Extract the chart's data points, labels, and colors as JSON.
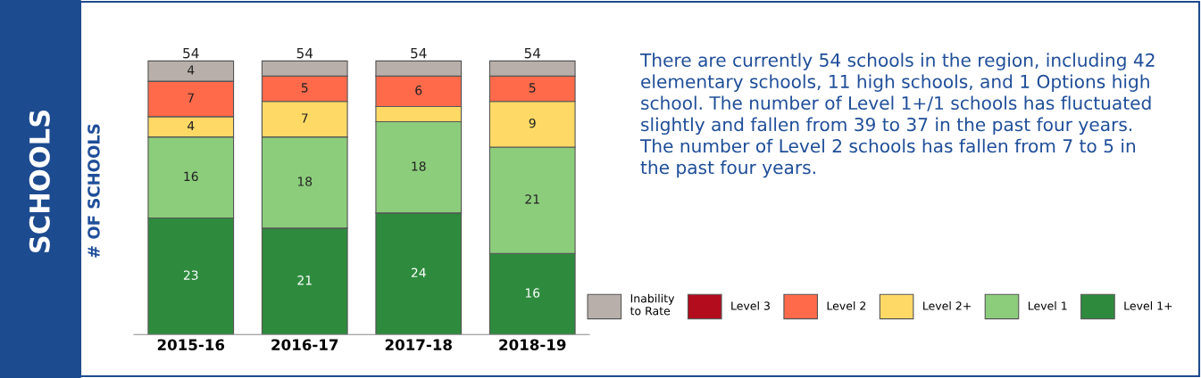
{
  "chart_data": {
    "type": "bar",
    "title": "SCHOOLS",
    "ylabel": "# OF SCHOOLS",
    "stacked": true,
    "categories": [
      "2015-16",
      "2016-17",
      "2017-18",
      "2018-19"
    ],
    "series": [
      {
        "name": "Level 1+",
        "color": "#2e8b3e",
        "values": [
          23,
          21,
          24,
          16
        ],
        "value_labels": [
          "23",
          "21",
          "24",
          "16"
        ]
      },
      {
        "name": "Level 1",
        "color": "#8ccd7c",
        "values": [
          16,
          18,
          18,
          21
        ],
        "value_labels": [
          "16",
          "18",
          "18",
          "21"
        ]
      },
      {
        "name": "Level 2+",
        "color": "#ffd966",
        "values": [
          4,
          7,
          3,
          9
        ],
        "value_labels": [
          "4",
          "7",
          null,
          "9"
        ]
      },
      {
        "name": "Level 2",
        "color": "#ff6a4b",
        "values": [
          7,
          5,
          6,
          5
        ],
        "value_labels": [
          "7",
          "5",
          "6",
          "5"
        ]
      },
      {
        "name": "Level 3",
        "color": "#b30c1c",
        "values": [
          0,
          0,
          0,
          0
        ],
        "value_labels": [
          null,
          null,
          null,
          null
        ]
      },
      {
        "name": "Inability\nto Rate",
        "color": "#b8afaa",
        "values": [
          4,
          3,
          3,
          3
        ],
        "value_labels": [
          "4",
          null,
          null,
          null
        ]
      }
    ],
    "totals": [
      "54",
      "54",
      "54",
      "54"
    ],
    "legend": "bottom right",
    "annotations": [
      "There are currently 54 schools in the region, including 42 elementary schools, 11 high schools, and 1 Options high school. The number of Level 1+/1 schools has fluctuated slightly and fallen from 39 to 37 in the past four years. The number of Level 2 schools has fallen from 7 to 5 in the past four years."
    ]
  }
}
